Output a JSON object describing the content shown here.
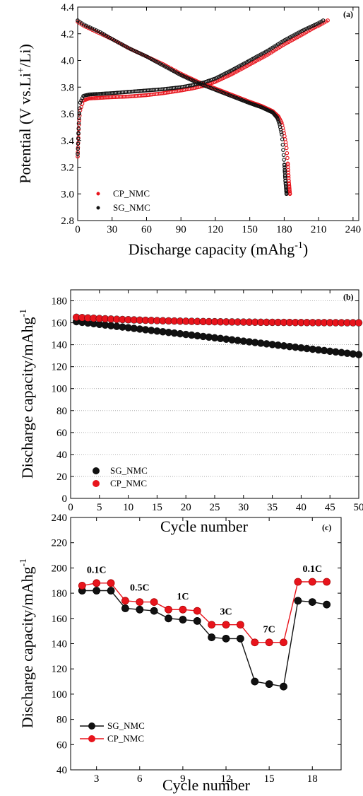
{
  "chart_data": [
    {
      "panel": "(a)",
      "type": "scatter",
      "xlabel": "Discharge capacity (mAhg",
      "xlabel_sup": "-1",
      "xlabel_end": ")",
      "ylabel": "Potential (V vs.Li",
      "ylabel_sup": "+",
      "ylabel_end": "/Li)",
      "xlim": [
        0,
        245
      ],
      "ylim": [
        2.8,
        4.4
      ],
      "xticks": [
        0,
        30,
        60,
        90,
        120,
        150,
        180,
        210,
        240
      ],
      "yticks": [
        2.8,
        3.0,
        3.2,
        3.4,
        3.6,
        3.8,
        4.0,
        4.2,
        4.4
      ],
      "legend_position": "bottom-left",
      "series": [
        {
          "name": "CP_NMC",
          "color": "#e8141c",
          "charge": {
            "x": [
              0,
              1,
              2,
              5,
              10,
              20,
              30,
              45,
              60,
              75,
              90,
              100,
              110,
              120,
              135,
              150,
              165,
              180,
              195,
              205,
              212,
              218
            ],
            "y": [
              3.28,
              3.5,
              3.62,
              3.7,
              3.715,
              3.72,
              3.725,
              3.73,
              3.74,
              3.755,
              3.775,
              3.79,
              3.81,
              3.84,
              3.9,
              3.97,
              4.04,
              4.12,
              4.19,
              4.24,
              4.27,
              4.3
            ]
          },
          "discharge": {
            "x": [
              0,
              5,
              10,
              20,
              30,
              45,
              60,
              75,
              90,
              105,
              120,
              135,
              150,
              160,
              170,
              175,
              178,
              180,
              182,
              183,
              184,
              185
            ],
            "y": [
              4.29,
              4.26,
              4.24,
              4.2,
              4.16,
              4.09,
              4.03,
              3.97,
              3.9,
              3.84,
              3.79,
              3.74,
              3.69,
              3.66,
              3.62,
              3.58,
              3.53,
              3.45,
              3.35,
              3.25,
              3.1,
              3.0
            ]
          }
        },
        {
          "name": "SG_NMC",
          "color": "#111111",
          "charge": {
            "x": [
              0,
              1,
              2,
              5,
              10,
              20,
              30,
              45,
              60,
              75,
              90,
              100,
              110,
              120,
              135,
              150,
              165,
              180,
              195,
              205,
              210,
              214
            ],
            "y": [
              3.3,
              3.55,
              3.68,
              3.735,
              3.745,
              3.75,
              3.755,
              3.765,
              3.775,
              3.785,
              3.8,
              3.815,
              3.835,
              3.865,
              3.93,
              4.0,
              4.07,
              4.15,
              4.22,
              4.26,
              4.28,
              4.3
            ]
          },
          "discharge": {
            "x": [
              0,
              5,
              10,
              20,
              30,
              45,
              60,
              75,
              90,
              105,
              120,
              135,
              150,
              160,
              170,
              174,
              176,
              178,
              179,
              180,
              181,
              182
            ],
            "y": [
              4.3,
              4.27,
              4.25,
              4.21,
              4.16,
              4.09,
              4.03,
              3.96,
              3.89,
              3.83,
              3.78,
              3.73,
              3.68,
              3.65,
              3.61,
              3.57,
              3.52,
              3.44,
              3.34,
              3.24,
              3.1,
              3.0
            ]
          }
        }
      ]
    },
    {
      "panel": "(b)",
      "type": "scatter",
      "xlabel": "Cycle number",
      "ylabel": "Discharge capacity/mAhg",
      "ylabel_sup": "-1",
      "xlim": [
        0,
        50
      ],
      "ylim": [
        0,
        190
      ],
      "xticks": [
        0,
        5,
        10,
        15,
        20,
        25,
        30,
        35,
        40,
        45,
        50
      ],
      "yticks": [
        0,
        20,
        40,
        60,
        80,
        100,
        120,
        140,
        160,
        180
      ],
      "grid": true,
      "legend_position": "bottom-left",
      "series": [
        {
          "name": "SG_NMC",
          "color": "#111111",
          "x_start": 1,
          "x_end": 50,
          "y_start": 161,
          "y_end": 131,
          "shape": "linear"
        },
        {
          "name": "CP_NMC",
          "color": "#e8141c",
          "x_start": 1,
          "x_end": 50,
          "y_start": 165,
          "y_end": 160,
          "shape": "decay"
        }
      ]
    },
    {
      "panel": "(c)",
      "type": "line",
      "xlabel": "Cycle number",
      "ylabel": "Discharge capacity/mAhg",
      "ylabel_sup": "-1",
      "xlim": [
        1.2,
        20
      ],
      "ylim": [
        40,
        240
      ],
      "xticks": [
        3,
        6,
        9,
        12,
        15,
        18
      ],
      "yticks": [
        40,
        60,
        80,
        100,
        120,
        140,
        160,
        180,
        200,
        220,
        240
      ],
      "legend_position": "bottom-left",
      "x": [
        2,
        3,
        4,
        5,
        6,
        7,
        8,
        9,
        10,
        11,
        12,
        13,
        14,
        15,
        16,
        17,
        18,
        19
      ],
      "series": [
        {
          "name": "SG_NMC",
          "color": "#111111",
          "values": [
            182,
            182,
            182,
            168,
            167,
            166,
            160,
            159,
            158,
            145,
            144,
            144,
            110,
            108,
            106,
            174,
            173,
            171
          ]
        },
        {
          "name": "CP_NMC",
          "color": "#e8141c",
          "values": [
            186,
            188,
            188,
            174,
            173,
            173,
            167,
            167,
            166,
            155,
            155,
            155,
            141,
            141,
            141,
            189,
            189,
            189
          ]
        }
      ],
      "annotations": [
        {
          "text": "0.1C",
          "x": 3,
          "y": 196
        },
        {
          "text": "0.5C",
          "x": 6,
          "y": 182
        },
        {
          "text": "1C",
          "x": 9,
          "y": 175
        },
        {
          "text": "3C",
          "x": 12,
          "y": 163
        },
        {
          "text": "7C",
          "x": 15,
          "y": 149
        },
        {
          "text": "0.1C",
          "x": 18,
          "y": 197
        }
      ]
    }
  ]
}
